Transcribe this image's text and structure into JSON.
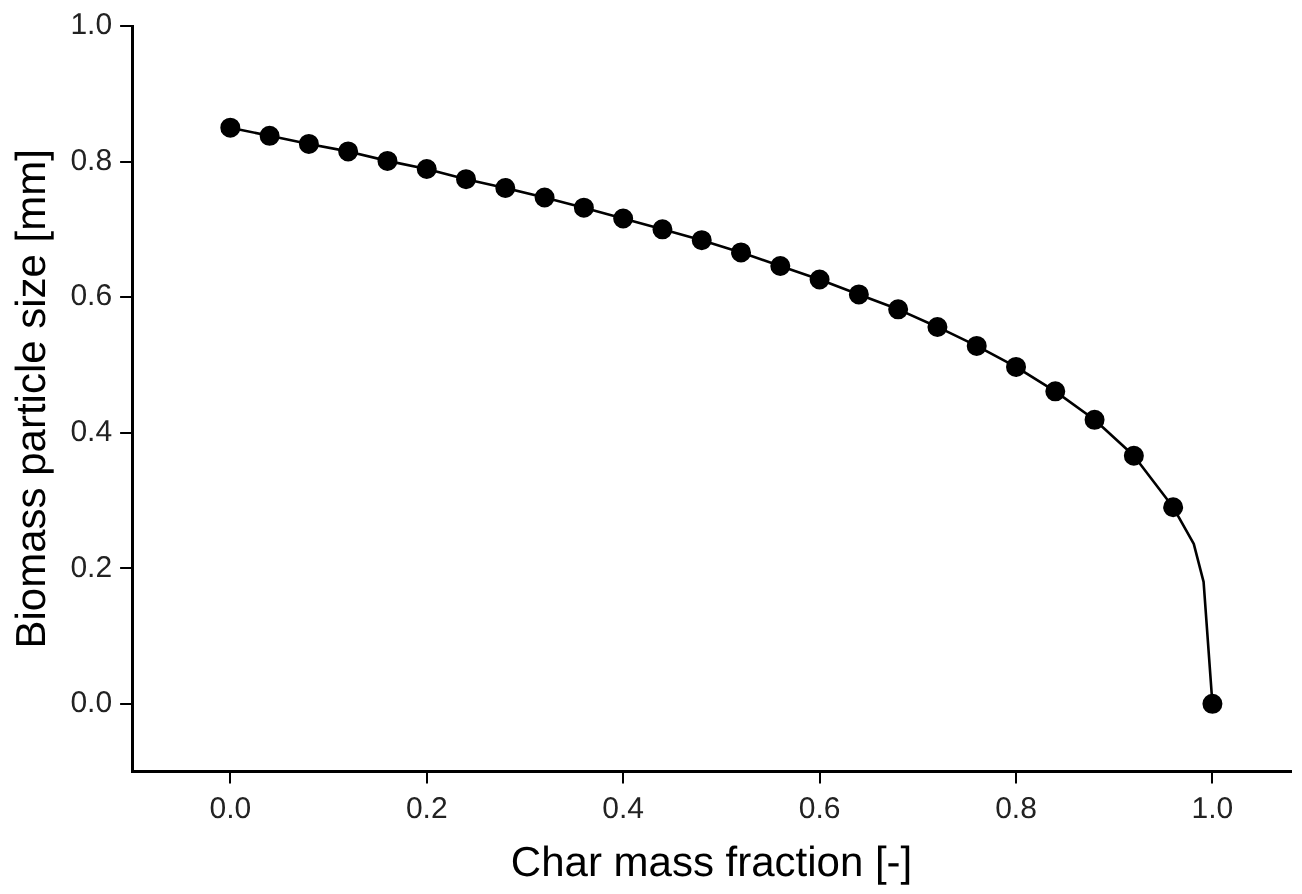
{
  "chart_data": {
    "type": "scatter",
    "xlabel": "Char mass fraction [-]",
    "ylabel": "Biomass particle size [mm]",
    "xlim": [
      -0.1,
      1.08
    ],
    "xticks": [
      {
        "value": 0,
        "label": "0.0"
      },
      0.2,
      0.4,
      0.6,
      0.8,
      {
        "value": 1,
        "label": "1.0"
      }
    ],
    "ylim": [
      -0.1,
      1.0
    ],
    "yticks": [
      {
        "value": 0,
        "label": "0.0"
      },
      0.2,
      0.4,
      0.6,
      0.8,
      {
        "value": 1,
        "label": "1.0"
      }
    ],
    "x": [
      0,
      0.04,
      0.08,
      0.12,
      0.16,
      0.2,
      0.24,
      0.28,
      0.32,
      0.36,
      0.4,
      0.44,
      0.48,
      0.52,
      0.56,
      0.6,
      0.64,
      0.68,
      0.72,
      0.76,
      0.8,
      0.84,
      0.88,
      0.92,
      0.96,
      1.0
    ],
    "grid": false,
    "legend": false,
    "marker": "circle",
    "series": [
      {
        "type": "line",
        "color": "#000000",
        "marker": "none",
        "line_style": "solid",
        "x": [
          0,
          0.04,
          0.08,
          0.12,
          0.16,
          0.2,
          0.24,
          0.28,
          0.32,
          0.36,
          0.4,
          0.44,
          0.48,
          0.52,
          0.56,
          0.6,
          0.64,
          0.68,
          0.72,
          0.76,
          0.8,
          0.84,
          0.88,
          0.92,
          0.96,
          0.981,
          0.991,
          1.0
        ],
        "values": [
          0.85,
          0.838,
          0.826,
          0.815,
          0.801,
          0.789,
          0.774,
          0.761,
          0.747,
          0.732,
          0.716,
          0.7,
          0.684,
          0.666,
          0.646,
          0.626,
          0.604,
          0.582,
          0.556,
          0.528,
          0.497,
          0.461,
          0.419,
          0.366,
          0.29,
          0.236,
          0.18,
          0
        ]
      },
      {
        "color": "#000000",
        "values": [
          0.85,
          0.838,
          0.826,
          0.815,
          0.801,
          0.789,
          0.774,
          0.761,
          0.747,
          0.732,
          0.716,
          0.7,
          0.684,
          0.666,
          0.646,
          0.626,
          0.604,
          0.582,
          0.556,
          0.528,
          0.497,
          0.461,
          0.419,
          0.366,
          0.29,
          0
        ]
      }
    ]
  }
}
